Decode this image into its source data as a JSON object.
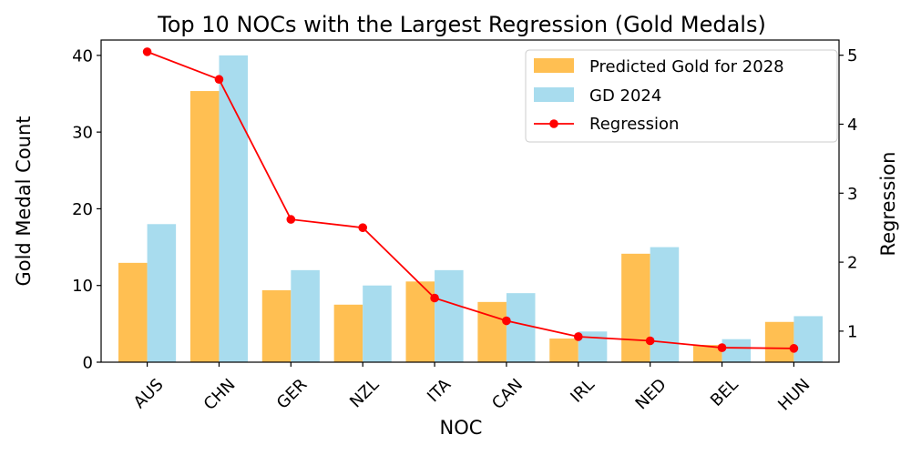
{
  "chart_data": {
    "type": "bar",
    "title": "Top 10 NOCs with the Largest Regression (Gold Medals)",
    "xlabel": "NOC",
    "ylabel": "Gold Medal Count",
    "y2label": "Regression",
    "categories": [
      "AUS",
      "CHN",
      "GER",
      "NZL",
      "ITA",
      "CAN",
      "IRL",
      "NED",
      "BEL",
      "HUN"
    ],
    "ylim": [
      0,
      42
    ],
    "y2lim": [
      0.55,
      5.22
    ],
    "yticks": [
      0,
      10,
      20,
      30,
      40
    ],
    "y2ticks": [
      1,
      2,
      3,
      4,
      5
    ],
    "legend_position": "top-right",
    "grid": false,
    "series": [
      {
        "name": "Predicted Gold for 2028",
        "type": "bar",
        "axis": "left",
        "color": "#ffbf52",
        "values": [
          12.95,
          35.35,
          9.38,
          7.5,
          10.52,
          7.85,
          3.08,
          14.14,
          2.24,
          5.25
        ]
      },
      {
        "name": "GD 2024",
        "type": "bar",
        "axis": "left",
        "color": "#a8dcee",
        "values": [
          18,
          40,
          12,
          10,
          12,
          9,
          4,
          15,
          3,
          6
        ]
      },
      {
        "name": "Regression",
        "type": "line",
        "axis": "right",
        "color": "#ff0000",
        "values": [
          5.05,
          4.65,
          2.62,
          2.5,
          1.48,
          1.15,
          0.92,
          0.86,
          0.76,
          0.75
        ]
      }
    ]
  }
}
